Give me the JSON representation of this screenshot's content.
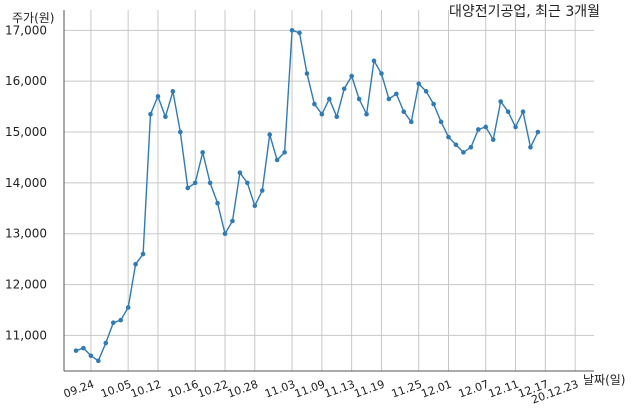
{
  "chart_data": {
    "type": "line",
    "title": "대양전기공업, 최근 3개월",
    "ylabel": "주가(원)",
    "xlabel": "날짜(일)",
    "ylim": [
      10300,
      17400
    ],
    "yticks": [
      11000,
      12000,
      13000,
      14000,
      15000,
      16000,
      17000
    ],
    "ytick_labels": [
      "11,000",
      "12,000",
      "13,000",
      "14,000",
      "15,000",
      "16,000",
      "17,000"
    ],
    "xtick_labels": [
      "09.24",
      "10.05",
      "10.12",
      "10.16",
      "10.22",
      "10.28",
      "11.03",
      "11.09",
      "11.13",
      "11.19",
      "11.25",
      "12.01",
      "12.07",
      "12.11",
      "12.17",
      "20.12.23"
    ],
    "xtick_index": [
      2,
      7,
      11,
      16,
      20,
      24,
      29,
      33,
      37,
      41,
      46,
      50,
      55,
      59,
      63,
      67
    ],
    "grid": true,
    "color": "#2e7bb6",
    "series": [
      {
        "values": [
          10700,
          10750,
          10600,
          10500,
          10850,
          11250,
          11300,
          11550,
          12400,
          12600,
          15350,
          15700,
          15300,
          15800,
          15000,
          13900,
          14000,
          14600,
          14000,
          13600,
          13000,
          13250,
          14200,
          14000,
          13550,
          13850,
          14950,
          14450,
          14600,
          17000,
          16950,
          16150,
          15550,
          15350,
          15650,
          15300,
          15850,
          16100,
          15650,
          15350,
          16400,
          16150,
          15650,
          15750,
          15400,
          15200,
          15950,
          15800,
          15550,
          15200,
          14900,
          14750,
          14600,
          14700,
          15050,
          15100,
          14850,
          15600,
          15400,
          15100,
          15400,
          14700,
          15000
        ]
      }
    ]
  }
}
